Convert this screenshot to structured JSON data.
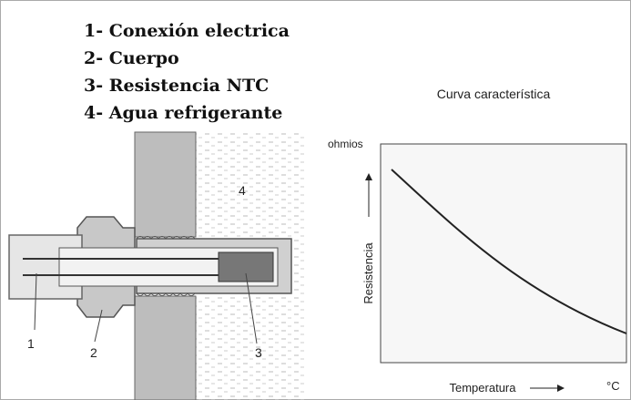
{
  "legend": [
    "1- Conexión electrica",
    "2- Cuerpo",
    "3- Resistencia NTC",
    "4- Agua refrigerante"
  ],
  "callouts": [
    "1",
    "2",
    "3",
    "4"
  ],
  "graph": {
    "title": "Curva característica",
    "y_unit": "ohmios",
    "y_label": "Resistencia",
    "x_label": "Temperatura",
    "x_unit": "°C"
  }
}
